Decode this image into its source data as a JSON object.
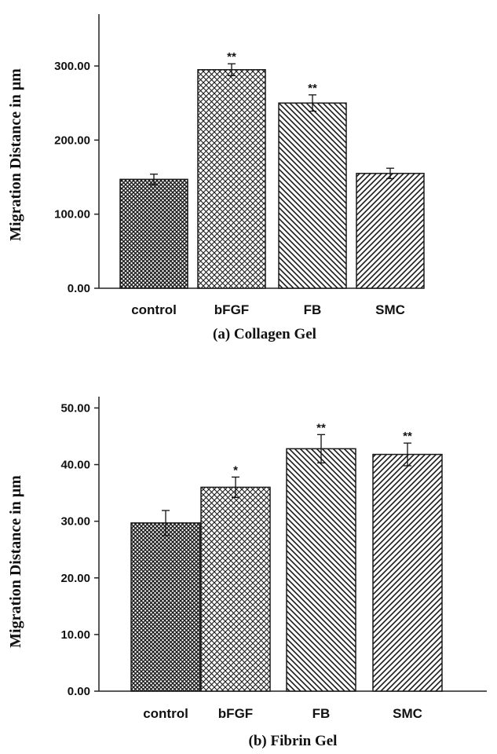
{
  "chart_data": [
    {
      "type": "bar",
      "caption": "(a) Collagen Gel",
      "ylabel": "Migration Distance in μm",
      "categories": [
        "control",
        "bFGF",
        "FB",
        "SMC"
      ],
      "values": [
        147,
        295,
        250,
        155
      ],
      "errors": [
        7,
        8,
        11,
        7
      ],
      "significance": [
        "",
        "**",
        "**",
        ""
      ],
      "patterns": [
        "crosshatch-dense",
        "crosshatch",
        "diag-back",
        "diag-fwd"
      ],
      "ylim": [
        0,
        370
      ],
      "yticks": [
        0,
        100,
        200,
        300
      ],
      "ytick_labels": [
        "0.00",
        "100.00",
        "200.00",
        "300.00"
      ]
    },
    {
      "type": "bar",
      "caption": "(b) Fibrin Gel",
      "ylabel": "Migration Distance in μm",
      "categories": [
        "control",
        "bFGF",
        "FB",
        "SMC"
      ],
      "values": [
        29.7,
        36.0,
        42.8,
        41.8
      ],
      "errors": [
        2.2,
        1.8,
        2.5,
        2.0
      ],
      "significance": [
        "",
        "*",
        "**",
        "**"
      ],
      "patterns": [
        "crosshatch-dense",
        "crosshatch",
        "diag-back",
        "diag-fwd"
      ],
      "ylim": [
        0,
        52
      ],
      "yticks": [
        0,
        10,
        20,
        30,
        40,
        50
      ],
      "ytick_labels": [
        "0.00",
        "10.00",
        "20.00",
        "30.00",
        "40.00",
        "50.00"
      ]
    }
  ]
}
